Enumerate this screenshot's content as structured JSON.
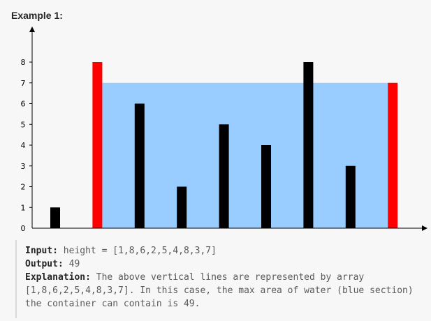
{
  "example": {
    "title": "Example 1:"
  },
  "chart_data": {
    "type": "bar",
    "values": [
      1,
      8,
      6,
      2,
      5,
      4,
      8,
      3,
      7
    ],
    "highlight_indices": [
      1,
      8
    ],
    "water_level": 7,
    "water_range": [
      1,
      8
    ],
    "y_ticks": [
      "0",
      "1",
      "2",
      "3",
      "4",
      "5",
      "6",
      "7",
      "8"
    ],
    "ylim": [
      0,
      8
    ],
    "colors": {
      "bar": "#000000",
      "highlight": "#ff0000",
      "water": "#99ccff",
      "axis": "#000000"
    }
  },
  "explanation": {
    "input_label": "Input:",
    "input_value": "height = [1,8,6,2,5,4,8,3,7]",
    "output_label": "Output:",
    "output_value": "49",
    "explanation_label": "Explanation:",
    "explanation_text": "The above vertical lines are represented by array [1,8,6,2,5,4,8,3,7]. In this case, the max area of water (blue section) the container can contain is 49."
  }
}
